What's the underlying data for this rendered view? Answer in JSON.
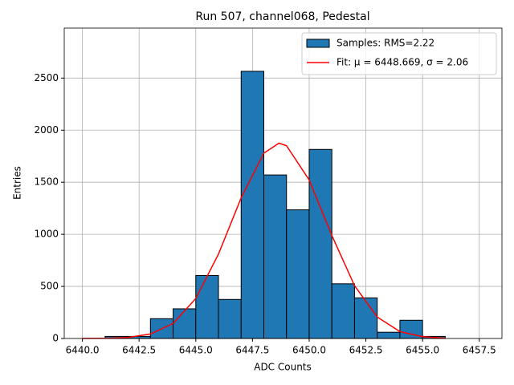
{
  "chart_data": {
    "type": "histogram",
    "title": "Run 507, channel068, Pedestal",
    "xlabel": "ADC Counts",
    "ylabel": "Entries",
    "xlim": [
      6439.2,
      6458.5
    ],
    "ylim": [
      0,
      2980
    ],
    "xticks": [
      {
        "value": 6440,
        "label": "6440.0"
      },
      {
        "value": 6442.5,
        "label": "6442.5"
      },
      {
        "value": 6445,
        "label": "6445.0"
      },
      {
        "value": 6447.5,
        "label": "6447.5"
      },
      {
        "value": 6450,
        "label": "6450.0"
      },
      {
        "value": 6452.5,
        "label": "6452.5"
      },
      {
        "value": 6455,
        "label": "6455.0"
      },
      {
        "value": 6457.5,
        "label": "6457.5"
      }
    ],
    "yticks": [
      0,
      500,
      1000,
      1500,
      2000,
      2500
    ],
    "grid": true,
    "legend": "upper right",
    "series": [
      {
        "name": "Samples: RMS=2.22",
        "type": "histogram",
        "color": "#1f77b4",
        "edgecolor": "#000000",
        "bins": [
          6441,
          6442,
          6443,
          6444,
          6445,
          6446,
          6447,
          6448,
          6449,
          6450,
          6451,
          6452,
          6453,
          6454,
          6455,
          6456
        ],
        "values": [
          20,
          20,
          190,
          285,
          605,
          375,
          2565,
          1570,
          1235,
          1815,
          525,
          390,
          60,
          175,
          20
        ]
      },
      {
        "name": "Fit: μ = 6448.669, σ = 2.06",
        "type": "line",
        "color": "#ff0000",
        "x": [
          6440,
          6441,
          6442,
          6443,
          6444,
          6445,
          6446,
          6447,
          6448,
          6448.669,
          6449,
          6450,
          6451,
          6452,
          6453,
          6454,
          6455,
          6456
        ],
        "values": [
          0,
          2,
          10,
          43,
          144,
          384,
          810,
          1350,
          1779,
          1875,
          1851,
          1522,
          989,
          507,
          206,
          66,
          17,
          3
        ]
      }
    ]
  }
}
